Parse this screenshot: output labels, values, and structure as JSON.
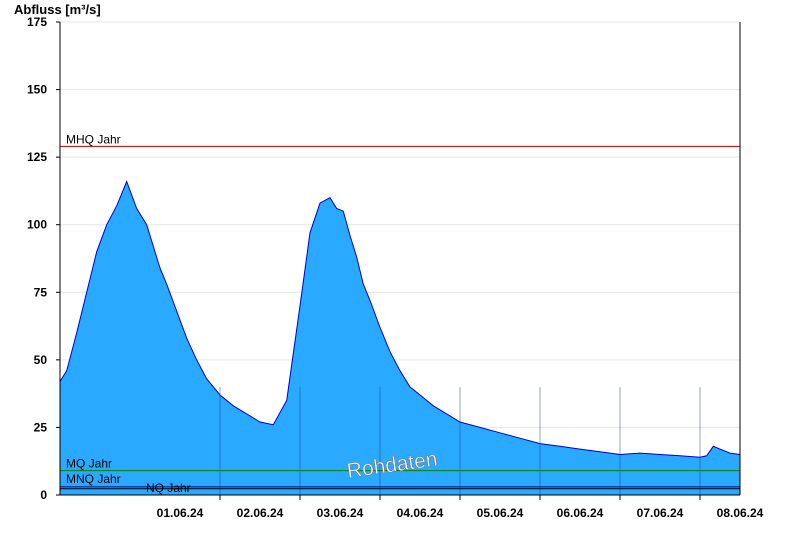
{
  "chart_data": {
    "type": "area",
    "ylabel": "Abfluss [m³/s]",
    "ylim": [
      0,
      175
    ],
    "yticks": [
      0,
      25,
      50,
      75,
      100,
      125,
      150,
      175
    ],
    "x_range": [
      "2024-05-31T00:00",
      "2024-06-08T12:00"
    ],
    "xticks": [
      "01.06.24",
      "02.06.24",
      "03.06.24",
      "04.06.24",
      "05.06.24",
      "06.06.24",
      "07.06.24",
      "08.06.24"
    ],
    "grid": true,
    "fill_color": "#29a9ff",
    "line_color": "#0000c8",
    "watermark": "Rohdaten",
    "reference_lines": [
      {
        "label": "MHQ Jahr",
        "value": 129,
        "color": "#c00000"
      },
      {
        "label": "MQ Jahr",
        "value": 9,
        "color": "#008000"
      },
      {
        "label": "MNQ Jahr",
        "value": 3,
        "color": "#000080"
      },
      {
        "label": "NQ Jahr",
        "value": 2.3,
        "color": "#000000"
      }
    ],
    "series": [
      {
        "x": [
          "2024-05-31T00:00",
          "2024-05-31T02:00",
          "2024-05-31T05:00",
          "2024-05-31T08:00",
          "2024-05-31T11:00",
          "2024-05-31T14:00",
          "2024-05-31T17:00",
          "2024-05-31T20:00",
          "2024-05-31T23:00",
          "2024-06-01T02:00",
          "2024-06-01T04:00",
          "2024-06-01T06:00",
          "2024-06-01T08:00",
          "2024-06-01T11:00",
          "2024-06-01T14:00",
          "2024-06-01T17:00",
          "2024-06-01T20:00",
          "2024-06-02T00:00",
          "2024-06-02T04:00",
          "2024-06-02T08:00",
          "2024-06-02T12:00",
          "2024-06-02T16:00",
          "2024-06-02T20:00",
          "2024-06-03T00:00",
          "2024-06-03T03:00",
          "2024-06-03T06:00",
          "2024-06-03T09:00",
          "2024-06-03T11:00",
          "2024-06-03T13:00",
          "2024-06-03T15:00",
          "2024-06-03T17:00",
          "2024-06-03T19:00",
          "2024-06-03T21:00",
          "2024-06-04T00:00",
          "2024-06-04T03:00",
          "2024-06-04T06:00",
          "2024-06-04T09:00",
          "2024-06-04T12:00",
          "2024-06-04T16:00",
          "2024-06-04T20:00",
          "2024-06-05T00:00",
          "2024-06-05T06:00",
          "2024-06-05T12:00",
          "2024-06-05T18:00",
          "2024-06-06T00:00",
          "2024-06-06T06:00",
          "2024-06-06T12:00",
          "2024-06-06T18:00",
          "2024-06-07T00:00",
          "2024-06-07T06:00",
          "2024-06-07T12:00",
          "2024-06-07T18:00",
          "2024-06-08T00:00",
          "2024-06-08T02:00",
          "2024-06-08T04:00",
          "2024-06-08T06:00",
          "2024-06-08T09:00",
          "2024-06-08T12:00"
        ],
        "y": [
          42,
          46,
          60,
          75,
          90,
          100,
          107,
          116,
          106,
          100,
          92,
          84,
          78,
          68,
          58,
          50,
          43,
          37,
          33,
          30,
          27,
          26,
          35,
          70,
          97,
          108,
          110,
          106,
          105,
          96,
          88,
          78,
          72,
          62,
          53,
          46,
          40,
          37,
          33,
          30,
          27,
          25,
          23,
          21,
          19,
          18,
          17,
          16,
          15,
          15.5,
          15,
          14.5,
          14,
          14.5,
          18,
          17,
          15.5,
          15
        ]
      }
    ]
  }
}
